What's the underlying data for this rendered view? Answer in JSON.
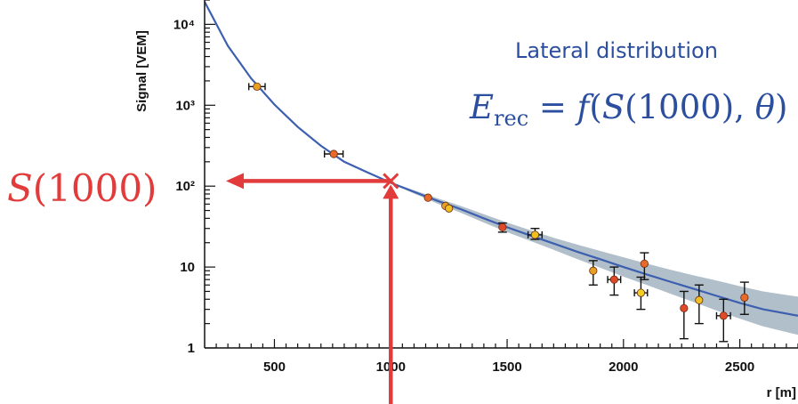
{
  "chart_data": {
    "type": "scatter",
    "title": "Lateral distribution",
    "xlabel": "r [m]",
    "ylabel": "Signal [VEM]",
    "x_ticks": [
      "500",
      "1000",
      "1500",
      "2000",
      "2500"
    ],
    "y_ticks": [
      "1",
      "10",
      "10²",
      "10³",
      "10⁴"
    ],
    "y_scale": "log",
    "xlim": [
      200,
      2750
    ],
    "ylim": [
      1,
      20000
    ],
    "formula": {
      "lhs": "E",
      "sub": "rec",
      "rhs_func": "f",
      "rhs_s": "S",
      "rhs_arg": "(1000)",
      "rhs_theta": "θ"
    },
    "s1000_label": {
      "s": "S",
      "arg": "(1000)"
    },
    "s1000_value": 110,
    "fit": {
      "r": [
        200,
        300,
        400,
        500,
        600,
        700,
        800,
        900,
        1000,
        1100,
        1200,
        1300,
        1400,
        1500,
        1600,
        1700,
        1800,
        1900,
        2000,
        2100,
        2200,
        2300,
        2400,
        2500,
        2600,
        2750
      ],
      "signal": [
        19000,
        5400,
        2150,
        1020,
        540,
        315,
        200,
        148,
        110,
        85,
        66,
        52,
        40,
        31,
        24.5,
        19.5,
        15.5,
        12.5,
        10,
        8.1,
        6.6,
        5.4,
        4.4,
        3.6,
        3.0,
        2.5
      ],
      "band_lo": [
        19000,
        5400,
        2150,
        1020,
        540,
        315,
        200,
        145,
        108,
        81,
        61,
        47,
        35.5,
        27,
        21,
        16.3,
        12.6,
        9.8,
        7.6,
        6.0,
        4.7,
        3.7,
        2.9,
        2.3,
        1.85,
        1.45
      ],
      "band_hi": [
        19000,
        5400,
        2150,
        1020,
        540,
        315,
        200,
        151,
        112,
        89,
        71,
        57,
        45,
        35.5,
        28.5,
        23,
        19,
        15.8,
        13.2,
        11,
        9.3,
        7.9,
        6.8,
        5.8,
        5.0,
        4.3
      ],
      "color": "#3d5fb0",
      "band_color": "#97aab8"
    },
    "points": [
      {
        "r": 425,
        "s": 1700,
        "xerr": 35,
        "yerr": null,
        "color": "#e8a020"
      },
      {
        "r": 755,
        "s": 250,
        "xerr": 40,
        "yerr": null,
        "color": "#e86a2a"
      },
      {
        "r": 1160,
        "s": 72,
        "xerr": null,
        "yerr": null,
        "color": "#e86a2a"
      },
      {
        "r": 1235,
        "s": 57,
        "xerr": null,
        "yerr": null,
        "color": "#e8a020"
      },
      {
        "r": 1250,
        "s": 53,
        "xerr": null,
        "yerr": null,
        "color": "#f0c020"
      },
      {
        "r": 1480,
        "s": 31,
        "xerr": null,
        "yerr": [
          27,
          35
        ],
        "color": "#e04a2a"
      },
      {
        "r": 1620,
        "s": 25,
        "xerr": 30,
        "yerr": [
          22,
          30
        ],
        "color": "#f0c020"
      },
      {
        "r": 1870,
        "s": 9,
        "xerr": null,
        "yerr": [
          6,
          12
        ],
        "color": "#e8a020"
      },
      {
        "r": 1960,
        "s": 7,
        "xerr": 28,
        "yerr": [
          4.5,
          10
        ],
        "color": "#e04a2a"
      },
      {
        "r": 2090,
        "s": 11,
        "xerr": null,
        "yerr": [
          7,
          15
        ],
        "color": "#e86a2a"
      },
      {
        "r": 2075,
        "s": 4.8,
        "xerr": 28,
        "yerr": [
          3.0,
          7.5
        ],
        "color": "#f0d020"
      },
      {
        "r": 2260,
        "s": 3.1,
        "xerr": null,
        "yerr": [
          1.3,
          5
        ],
        "color": "#e04a2a"
      },
      {
        "r": 2325,
        "s": 3.9,
        "xerr": null,
        "yerr": [
          2.0,
          6
        ],
        "color": "#f0c020"
      },
      {
        "r": 2430,
        "s": 2.5,
        "xerr": 30,
        "yerr": [
          1.2,
          4
        ],
        "color": "#e04a2a"
      },
      {
        "r": 2520,
        "s": 4.2,
        "xerr": null,
        "yerr": [
          2.6,
          6.5
        ],
        "color": "#e86a2a"
      }
    ],
    "arrow_color": "#e23b3b",
    "grid": false
  }
}
